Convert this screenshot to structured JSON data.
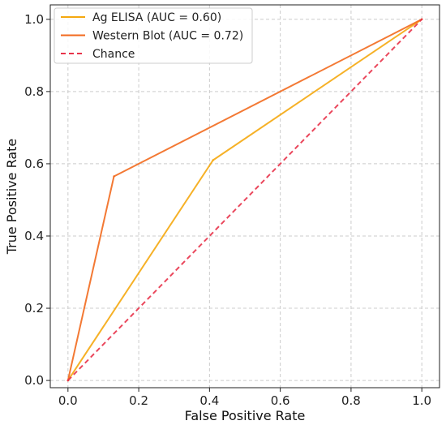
{
  "chart_data": {
    "type": "line",
    "title": "",
    "xlabel": "False Positive Rate",
    "ylabel": "True Positive Rate",
    "xlim": [
      -0.05,
      1.05
    ],
    "ylim": [
      -0.02,
      1.04
    ],
    "xticks": [
      0.0,
      0.2,
      0.4,
      0.6,
      0.8,
      1.0
    ],
    "yticks": [
      0.0,
      0.2,
      0.4,
      0.6,
      0.8,
      1.0
    ],
    "xtick_labels": [
      "0.0",
      "0.2",
      "0.4",
      "0.6",
      "0.8",
      "1.0"
    ],
    "ytick_labels": [
      "0.0",
      "0.2",
      "0.4",
      "0.6",
      "0.8",
      "1.0"
    ],
    "grid": true,
    "legend_position": "top-left",
    "series": [
      {
        "name": "Ag ELISA (AUC = 0.60)",
        "color": "#f5a80f",
        "dashed": false,
        "x": [
          0.0,
          0.41,
          1.0
        ],
        "y": [
          0.0,
          0.61,
          1.0
        ]
      },
      {
        "name": "Western Blot (AUC = 0.72)",
        "color": "#f26a1e",
        "dashed": false,
        "x": [
          0.0,
          0.13,
          1.0
        ],
        "y": [
          0.0,
          0.565,
          1.0
        ]
      },
      {
        "name": "Chance",
        "color": "#e8334a",
        "dashed": true,
        "x": [
          0.0,
          1.0
        ],
        "y": [
          0.0,
          1.0
        ]
      }
    ]
  }
}
